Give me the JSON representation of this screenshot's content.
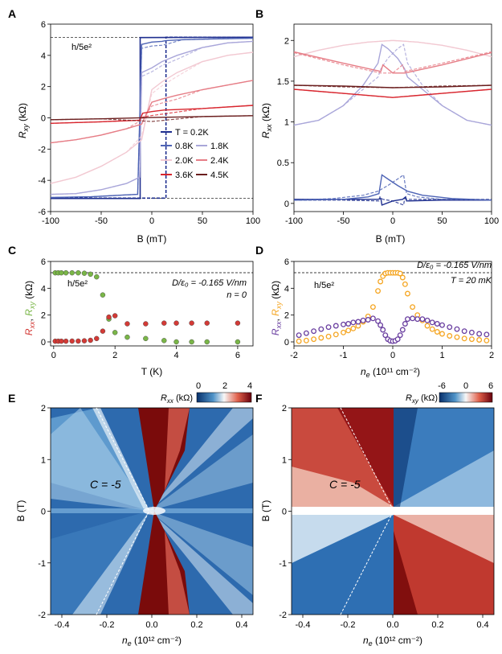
{
  "colors": {
    "T02": "#1f2f8f",
    "T08": "#4d63b5",
    "T18": "#a9a6d9",
    "T20": "#f2c9d2",
    "T24": "#e67d86",
    "T36": "#d8262e",
    "T45": "#6b1f1f",
    "green": "#7ab648",
    "red": "#d33a36",
    "orange": "#f5a623",
    "purple": "#6a3fa0"
  },
  "panels": {
    "A": {
      "letter": "A",
      "ylabel_main": "R",
      "ylabel_sub": "xy",
      "ylabel_unit": " (kΩ)",
      "xlabel": "B (mT)",
      "hline_label": "h/5e²",
      "legend": [
        {
          "label": "T = 0.2K",
          "color_key": "T02"
        },
        {
          "label": "0.8K",
          "color_key": "T08"
        },
        {
          "label": "1.8K",
          "color_key": "T18"
        },
        {
          "label": "2.0K",
          "color_key": "T20"
        },
        {
          "label": "2.4K",
          "color_key": "T24"
        },
        {
          "label": "3.6K",
          "color_key": "T36"
        },
        {
          "label": "4.5K",
          "color_key": "T45"
        }
      ]
    },
    "B": {
      "letter": "B",
      "ylabel_main": "R",
      "ylabel_sub": "xx",
      "ylabel_unit": " (kΩ)",
      "xlabel": "B (mT)"
    },
    "C": {
      "letter": "C",
      "xlabel": "T (K)",
      "ylabel_unit": " (kΩ)",
      "hline_label": "h/5e²",
      "note1": "D/ε₀ = -0.165 V/nm",
      "note2": "n = 0"
    },
    "D": {
      "letter": "D",
      "xlabel_main": "n",
      "xlabel_sub": "e",
      "xlabel_unit": " (10¹¹ cm⁻²)",
      "ylabel_unit": " (kΩ)",
      "hline_label": "h/5e²",
      "note1": "D/ε₀ = -0.165 V/nm",
      "note2": "T = 20 mK"
    },
    "E": {
      "letter": "E",
      "ylabel": "B (T)",
      "xlabel_main": "n",
      "xlabel_sub": "e",
      "xlabel_unit": " (10¹² cm⁻²)",
      "cbar_label": "R",
      "cbar_sub": "xx",
      "cbar_unit": " (kΩ)",
      "cbar_ticks": [
        "0",
        "2",
        "4"
      ],
      "annotation": "C = -5"
    },
    "F": {
      "letter": "F",
      "ylabel": "B (T)",
      "xlabel_main": "n",
      "xlabel_sub": "e",
      "xlabel_unit": " (10¹² cm⁻²)",
      "cbar_label": "R",
      "cbar_sub": "xy",
      "cbar_unit": " (kΩ)",
      "cbar_ticks": [
        "-6",
        "0",
        "6"
      ],
      "annotation": "C = -5"
    }
  },
  "chart_data": [
    {
      "panel": "A",
      "type": "line",
      "xlim": [
        -100,
        100
      ],
      "ylim": [
        -6,
        6
      ],
      "xticks": [
        -100,
        -50,
        0,
        50,
        100
      ],
      "yticks": [
        -6,
        -4,
        -2,
        0,
        2,
        4,
        6
      ],
      "hlines": [
        5.16,
        -5.16
      ],
      "series": [
        {
          "name": "T = 0.2K",
          "color_key": "T02",
          "hysteresis": true,
          "x": [
            -100,
            -11.5,
            -11.5,
            14,
            14,
            100
          ],
          "y_up": [
            -5.16,
            -5.16,
            5.14,
            5.14,
            5.14,
            5.16
          ],
          "y_down": [
            -5.16,
            -5.16,
            -5.16,
            -5.16,
            5.16,
            5.16
          ],
          "switch_up": -11.5,
          "switch_down": 14
        },
        {
          "name": "0.8K",
          "color_key": "T08",
          "x": [
            -100,
            -60,
            -30,
            -14,
            -10,
            0,
            10,
            14,
            30,
            60,
            100
          ],
          "y": [
            -5.1,
            -5.05,
            -4.95,
            -4.9,
            4.7,
            4.85,
            4.9,
            4.95,
            5.0,
            5.05,
            5.1
          ]
        },
        {
          "name": "1.8K",
          "color_key": "T18",
          "x": [
            -100,
            -75,
            -50,
            -25,
            -12,
            -10,
            0,
            10,
            25,
            50,
            75,
            100
          ],
          "y": [
            -4.9,
            -4.85,
            -4.6,
            -4.2,
            -3.8,
            2.9,
            3.2,
            3.6,
            4.0,
            4.5,
            4.8,
            4.9
          ]
        },
        {
          "name": "2.0K",
          "color_key": "T20",
          "x": [
            -100,
            -75,
            -50,
            -25,
            -10,
            0,
            10,
            25,
            50,
            75,
            100
          ],
          "y": [
            -4.2,
            -3.8,
            -3.1,
            -2.2,
            -1.4,
            1.8,
            2.3,
            2.9,
            3.6,
            4.0,
            4.2
          ]
        },
        {
          "name": "2.4K",
          "color_key": "T24",
          "x": [
            -100,
            -75,
            -50,
            -25,
            -10,
            0,
            10,
            25,
            50,
            75,
            100
          ],
          "y": [
            -1.6,
            -1.4,
            -1.1,
            -0.7,
            -0.4,
            1.0,
            1.2,
            1.45,
            1.8,
            2.1,
            2.4
          ]
        },
        {
          "name": "3.6K",
          "color_key": "T36",
          "x": [
            -100,
            -50,
            -12,
            -9,
            0,
            12,
            50,
            100
          ],
          "y": [
            -0.35,
            -0.25,
            -0.15,
            0.3,
            0.4,
            0.5,
            0.6,
            0.8
          ]
        },
        {
          "name": "4.5K",
          "color_key": "T45",
          "x": [
            -100,
            -50,
            0,
            50,
            100
          ],
          "y": [
            -0.12,
            -0.06,
            0.02,
            0.08,
            0.14
          ]
        }
      ]
    },
    {
      "panel": "B",
      "type": "line",
      "xlim": [
        -100,
        100
      ],
      "ylim": [
        -0.1,
        2.2
      ],
      "xticks": [
        -100,
        -50,
        0,
        50,
        100
      ],
      "yticks": [
        0.0,
        0.5,
        1.0,
        1.5,
        2.0
      ],
      "series": [
        {
          "name": "0.2K",
          "color_key": "T02",
          "x": [
            -100,
            -50,
            -15,
            -12,
            -11,
            0,
            10,
            13,
            14,
            50,
            100
          ],
          "y": [
            0.05,
            0.05,
            0.05,
            0.06,
            -0.02,
            0.03,
            0.05,
            0.08,
            0.03,
            0.04,
            0.04
          ]
        },
        {
          "name": "0.8K",
          "color_key": "T08",
          "x": [
            -100,
            -50,
            -25,
            -14,
            -11,
            -5,
            5,
            15,
            30,
            60,
            100
          ],
          "y": [
            0.04,
            0.05,
            0.08,
            0.12,
            0.35,
            0.3,
            0.22,
            0.15,
            0.1,
            0.06,
            0.04
          ]
        },
        {
          "name": "1.8K",
          "color_key": "T18",
          "x": [
            -100,
            -75,
            -50,
            -30,
            -15,
            -11,
            -5,
            5,
            12,
            15,
            30,
            50,
            75,
            100
          ],
          "y": [
            0.96,
            1.02,
            1.2,
            1.45,
            1.72,
            1.95,
            1.9,
            1.78,
            1.65,
            1.55,
            1.4,
            1.2,
            1.02,
            0.96
          ]
        },
        {
          "name": "2.0K",
          "color_key": "T20",
          "x": [
            -100,
            -75,
            -50,
            -25,
            0,
            25,
            50,
            75,
            100
          ],
          "y": [
            1.8,
            1.88,
            1.94,
            1.98,
            2.0,
            1.98,
            1.94,
            1.88,
            1.8
          ]
        },
        {
          "name": "2.4K",
          "color_key": "T24",
          "x": [
            -100,
            -50,
            -12,
            -10,
            0,
            12,
            50,
            100
          ],
          "y": [
            1.86,
            1.72,
            1.62,
            1.7,
            1.6,
            1.6,
            1.7,
            1.85
          ]
        },
        {
          "name": "3.6K",
          "color_key": "T36",
          "x": [
            -100,
            -50,
            0,
            50,
            100
          ],
          "y": [
            1.4,
            1.35,
            1.3,
            1.35,
            1.4
          ]
        },
        {
          "name": "4.5K",
          "color_key": "T45",
          "x": [
            -100,
            -50,
            0,
            50,
            100
          ],
          "y": [
            1.45,
            1.44,
            1.42,
            1.43,
            1.45
          ]
        }
      ]
    },
    {
      "panel": "C",
      "type": "scatter",
      "xlim": [
        -0.1,
        6.5
      ],
      "ylim": [
        -0.3,
        6
      ],
      "xticks": [
        0,
        2,
        4,
        6
      ],
      "yticks": [
        0,
        2,
        4,
        6
      ],
      "hlines": [
        5.16
      ],
      "series": [
        {
          "name": "R_xy",
          "color_key": "green",
          "x": [
            0.05,
            0.15,
            0.25,
            0.4,
            0.6,
            0.8,
            1.0,
            1.2,
            1.4,
            1.6,
            1.8,
            2.0,
            2.4,
            3.0,
            3.6,
            4.0,
            4.5,
            5.0,
            6.0
          ],
          "y": [
            5.15,
            5.15,
            5.15,
            5.15,
            5.15,
            5.15,
            5.12,
            5.05,
            4.85,
            3.5,
            1.7,
            0.7,
            0.35,
            0.25,
            0.1,
            0.0,
            0.0,
            0.0,
            0.0
          ]
        },
        {
          "name": "R_xx",
          "color_key": "red",
          "x": [
            0.05,
            0.15,
            0.25,
            0.4,
            0.6,
            0.8,
            1.0,
            1.2,
            1.4,
            1.6,
            1.8,
            2.0,
            2.4,
            3.0,
            3.6,
            4.0,
            4.5,
            5.0,
            6.0
          ],
          "y": [
            0.05,
            0.05,
            0.05,
            0.05,
            0.06,
            0.06,
            0.08,
            0.12,
            0.25,
            0.8,
            1.85,
            1.95,
            1.35,
            1.35,
            1.4,
            1.4,
            1.4,
            1.4,
            1.4
          ]
        }
      ]
    },
    {
      "panel": "D",
      "type": "scatter",
      "xlim": [
        -2,
        2
      ],
      "ylim": [
        -0.3,
        6
      ],
      "xticks": [
        -2,
        -1,
        0,
        1,
        2
      ],
      "yticks": [
        0,
        2,
        4,
        6
      ],
      "hlines": [
        5.16
      ],
      "series": [
        {
          "name": "R_xy",
          "color_key": "orange",
          "x": [
            -1.9,
            -1.75,
            -1.6,
            -1.45,
            -1.3,
            -1.15,
            -1.0,
            -0.9,
            -0.8,
            -0.7,
            -0.6,
            -0.5,
            -0.4,
            -0.3,
            -0.25,
            -0.2,
            -0.15,
            -0.1,
            -0.05,
            0.0,
            0.05,
            0.1,
            0.15,
            0.2,
            0.25,
            0.3,
            0.4,
            0.5,
            0.6,
            0.7,
            0.8,
            0.9,
            1.0,
            1.15,
            1.3,
            1.45,
            1.6,
            1.75,
            1.9
          ],
          "y": [
            0.05,
            0.1,
            0.2,
            0.3,
            0.4,
            0.55,
            0.7,
            0.85,
            1.0,
            1.2,
            1.5,
            1.9,
            2.6,
            3.8,
            4.5,
            4.9,
            5.1,
            5.15,
            5.15,
            5.15,
            5.15,
            5.15,
            5.1,
            4.8,
            4.3,
            3.6,
            2.6,
            2.0,
            1.6,
            1.2,
            0.95,
            0.75,
            0.6,
            0.45,
            0.35,
            0.25,
            0.2,
            0.15,
            0.1
          ]
        },
        {
          "name": "R_xx",
          "color_key": "purple",
          "x": [
            -1.9,
            -1.75,
            -1.6,
            -1.45,
            -1.3,
            -1.15,
            -1.0,
            -0.9,
            -0.8,
            -0.7,
            -0.6,
            -0.5,
            -0.4,
            -0.3,
            -0.25,
            -0.2,
            -0.15,
            -0.1,
            -0.05,
            0.0,
            0.05,
            0.1,
            0.15,
            0.2,
            0.25,
            0.3,
            0.4,
            0.5,
            0.6,
            0.7,
            0.8,
            0.9,
            1.0,
            1.15,
            1.3,
            1.45,
            1.6,
            1.75,
            1.9
          ],
          "y": [
            0.5,
            0.65,
            0.8,
            0.95,
            1.1,
            1.2,
            1.3,
            1.35,
            1.45,
            1.5,
            1.6,
            1.65,
            1.75,
            1.55,
            1.25,
            0.9,
            0.5,
            0.2,
            0.08,
            0.05,
            0.08,
            0.2,
            0.5,
            0.9,
            1.35,
            1.7,
            1.75,
            1.7,
            1.7,
            1.6,
            1.45,
            1.35,
            1.25,
            1.1,
            0.95,
            0.8,
            0.7,
            0.6,
            0.55
          ]
        }
      ]
    },
    {
      "panel": "E",
      "type": "heatmap",
      "quantity": "R_xx (kΩ)",
      "xlim": [
        -0.45,
        0.45
      ],
      "ylim": [
        -2,
        2
      ],
      "xticks": [
        -0.4,
        -0.2,
        0.0,
        0.2,
        0.4
      ],
      "yticks": [
        -2,
        -1,
        0,
        1,
        2
      ],
      "zlim": [
        0,
        4
      ],
      "dashed_lines": [
        [
          [
            -0.24,
            2
          ],
          [
            0.0,
            0
          ]
        ],
        [
          [
            -0.24,
            -2
          ],
          [
            0.0,
            0
          ]
        ]
      ]
    },
    {
      "panel": "F",
      "type": "heatmap",
      "quantity": "R_xy (kΩ)",
      "xlim": [
        -0.45,
        0.45
      ],
      "ylim": [
        -2,
        2
      ],
      "xticks": [
        -0.4,
        -0.2,
        0.0,
        0.2,
        0.4
      ],
      "yticks": [
        -2,
        -1,
        0,
        1,
        2
      ],
      "zlim": [
        -6,
        6
      ],
      "dashed_lines": [
        [
          [
            -0.24,
            2
          ],
          [
            0.0,
            0
          ]
        ],
        [
          [
            -0.24,
            -2
          ],
          [
            0.0,
            0
          ]
        ]
      ]
    }
  ]
}
